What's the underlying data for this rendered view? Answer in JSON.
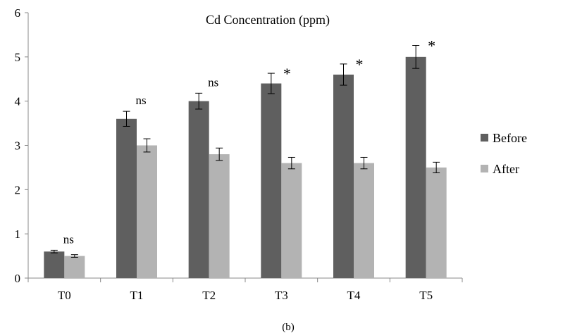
{
  "chart_data": {
    "type": "bar",
    "title": "Cd Concentration (ppm)",
    "caption": "(b)",
    "xlabel": "",
    "ylabel": "",
    "ylim": [
      0,
      6
    ],
    "yticks": [
      0,
      1,
      2,
      3,
      4,
      5,
      6
    ],
    "grid": false,
    "legend_position": "right",
    "categories": [
      "T0",
      "T1",
      "T2",
      "T3",
      "T4",
      "T5"
    ],
    "series": [
      {
        "name": "Before",
        "color": "#5f5f5f",
        "values": [
          0.6,
          3.6,
          4.0,
          4.4,
          4.6,
          5.0
        ],
        "errors": [
          0.03,
          0.17,
          0.18,
          0.23,
          0.24,
          0.26
        ]
      },
      {
        "name": "After",
        "color": "#b3b3b3",
        "values": [
          0.5,
          3.0,
          2.8,
          2.6,
          2.6,
          2.5
        ],
        "errors": [
          0.03,
          0.15,
          0.14,
          0.13,
          0.13,
          0.12
        ]
      }
    ],
    "annotations": [
      "ns",
      "ns",
      "ns",
      "*",
      "*",
      "*"
    ]
  }
}
